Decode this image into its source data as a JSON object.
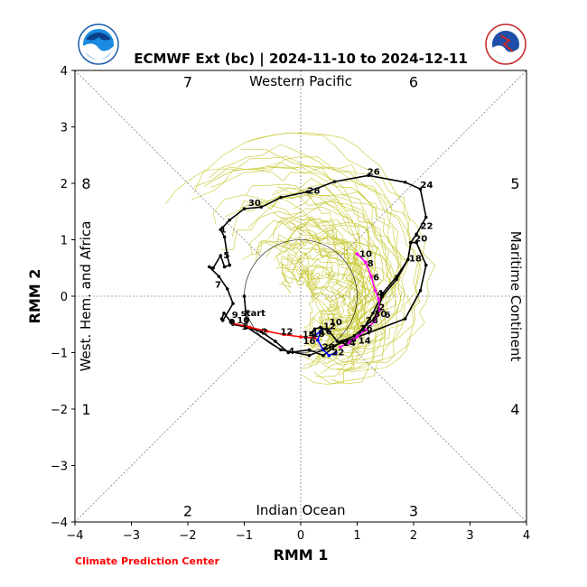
{
  "chart_data": {
    "type": "line",
    "title": "ECMWF Ext (bc) | 2024-11-10 to 2024-12-11",
    "xlabel": "RMM 1",
    "ylabel": "RMM 2",
    "xlim": [
      -4,
      4
    ],
    "ylim": [
      -4,
      4
    ],
    "xticks": [
      "−4",
      "−3",
      "−2",
      "−1",
      "0",
      "1",
      "2",
      "3",
      "4"
    ],
    "yticks": [
      "−4",
      "−3",
      "−2",
      "−1",
      "0",
      "1",
      "2",
      "3",
      "4"
    ],
    "phases": [
      {
        "label": "1",
        "x": -3.8,
        "y": -2
      },
      {
        "label": "2",
        "x": -2,
        "y": -3.8
      },
      {
        "label": "3",
        "x": 2,
        "y": -3.8
      },
      {
        "label": "4",
        "x": 3.8,
        "y": -2
      },
      {
        "label": "5",
        "x": 3.8,
        "y": 2
      },
      {
        "label": "6",
        "x": 2,
        "y": 3.8
      },
      {
        "label": "7",
        "x": -2,
        "y": 3.8
      },
      {
        "label": "8",
        "x": -3.8,
        "y": 2
      }
    ],
    "regions": {
      "top": "Western Pacific",
      "bottom": "Indian Ocean",
      "left": "West. Hem. and Africa",
      "right": "Maritime Continent"
    },
    "credit": "Climate Prediction Center",
    "colors": {
      "observed": "#000000",
      "ens_mean_1": "#ff0000",
      "ens_mean_2": "#0000ff",
      "ens_mean_3": "#ff00ff",
      "members": "#c8c832",
      "credit": "#ff0000"
    },
    "series": [
      {
        "name": "",
        "color": "#000000",
        "x": [
          -1.26,
          -1.35,
          -1.42,
          -1.55,
          -1.62,
          -1.45,
          -1.3,
          -1.2,
          -1.38,
          -1.4,
          -1.36,
          -1.2,
          -0.95,
          -0.35,
          0.15,
          0.58,
          1.2,
          1.85,
          2.12,
          2.22,
          2.05,
          1.95,
          1.9,
          1.7,
          1.45,
          1.3,
          1.12,
          0.95,
          0.72,
          0.4,
          0.15,
          -0.22,
          -0.45,
          -0.7,
          -0.95,
          -1.0
        ],
        "y": [
          0.55,
          0.52,
          0.72,
          0.5,
          0.52,
          0.35,
          0.13,
          -0.13,
          -0.43,
          -0.4,
          -0.3,
          -0.5,
          -0.55,
          -0.95,
          -1.05,
          -0.88,
          -0.65,
          -0.4,
          0.1,
          0.55,
          0.95,
          0.95,
          0.65,
          0.3,
          0.0,
          -0.4,
          -0.55,
          -0.7,
          -0.8,
          -1.05,
          -0.95,
          -1.0,
          -0.8,
          -0.63,
          -0.55,
          0.0
        ]
      },
      {
        "name": "",
        "color": "#000000",
        "x": [
          -1.26,
          -1.3,
          -1.35,
          -1.42,
          -1.26,
          -1.0,
          -0.7,
          -0.35,
          0.12,
          0.6,
          1.2,
          1.85,
          2.12,
          2.22,
          2.05,
          1.95,
          1.9,
          1.7,
          1.45,
          1.28,
          1.1,
          0.95,
          0.8,
          0.65,
          0.5,
          0.35,
          0.25,
          0.18
        ],
        "y": [
          0.55,
          0.7,
          1.05,
          1.18,
          1.35,
          1.55,
          1.58,
          1.75,
          1.85,
          2.03,
          2.14,
          2.02,
          1.9,
          1.4,
          1.1,
          0.95,
          0.65,
          0.35,
          0.05,
          -0.3,
          -0.58,
          -0.78,
          -0.85,
          -0.8,
          -0.62,
          -0.55,
          -0.58,
          -0.65
        ]
      },
      {
        "name": "",
        "color": "#ff0000",
        "x": [
          -1.2,
          -0.9,
          -0.6,
          -0.3,
          0.0,
          0.25
        ],
        "y": [
          -0.48,
          -0.55,
          -0.62,
          -0.68,
          -0.72,
          -0.74
        ]
      },
      {
        "name": "",
        "color": "#0000ff",
        "x": [
          0.25,
          0.35,
          0.3,
          0.4,
          0.5,
          0.62
        ],
        "y": [
          -0.7,
          -0.62,
          -0.78,
          -0.95,
          -1.05,
          -1.0
        ]
      },
      {
        "name": "",
        "color": "#ff00ff",
        "x": [
          1.0,
          1.15,
          1.25,
          1.32,
          1.38,
          1.4,
          1.3,
          1.15,
          1.0,
          0.85,
          0.7
        ],
        "y": [
          0.75,
          0.6,
          0.35,
          0.1,
          -0.05,
          -0.25,
          -0.45,
          -0.6,
          -0.72,
          -0.82,
          -0.9
        ]
      }
    ],
    "day_labels": [
      {
        "text": "30",
        "x": -0.93,
        "y": 1.6
      },
      {
        "text": "28",
        "x": 0.12,
        "y": 1.82
      },
      {
        "text": "26",
        "x": 1.18,
        "y": 2.15
      },
      {
        "text": "24",
        "x": 2.12,
        "y": 1.92
      },
      {
        "text": "22",
        "x": 2.12,
        "y": 1.19
      },
      {
        "text": "20",
        "x": 2.02,
        "y": 0.97
      },
      {
        "text": "18",
        "x": 1.92,
        "y": 0.62
      },
      {
        "text": "1",
        "x": -1.43,
        "y": 1.13
      },
      {
        "text": "5",
        "x": -1.37,
        "y": 0.67
      },
      {
        "text": "7",
        "x": -1.52,
        "y": 0.15
      },
      {
        "text": "9",
        "x": -1.22,
        "y": -0.38
      },
      {
        "text": "start",
        "x": -1.06,
        "y": -0.35
      },
      {
        "text": "10",
        "x": -1.13,
        "y": -0.48
      },
      {
        "text": "1",
        "x": -1.05,
        "y": -0.59
      },
      {
        "text": "2",
        "x": -0.7,
        "y": -0.68
      },
      {
        "text": "12",
        "x": -0.36,
        "y": -0.68
      },
      {
        "text": "14",
        "x": 0.03,
        "y": -0.73
      },
      {
        "text": "16",
        "x": 0.04,
        "y": -0.85
      },
      {
        "text": "4",
        "x": -0.22,
        "y": -1.02
      },
      {
        "text": "16",
        "x": 0.33,
        "y": -0.68
      },
      {
        "text": "18",
        "x": 0.2,
        "y": -0.72
      },
      {
        "text": "12",
        "x": 0.4,
        "y": -0.58
      },
      {
        "text": "10",
        "x": 0.51,
        "y": -0.51
      },
      {
        "text": "20",
        "x": 0.38,
        "y": -0.95
      },
      {
        "text": "22",
        "x": 0.55,
        "y": -1.05
      },
      {
        "text": "24",
        "x": 0.75,
        "y": -0.88
      },
      {
        "text": "14",
        "x": 1.02,
        "y": -0.84
      },
      {
        "text": "26",
        "x": 1.05,
        "y": -0.62
      },
      {
        "text": "28",
        "x": 1.15,
        "y": -0.48
      },
      {
        "text": "30",
        "x": 1.3,
        "y": -0.37
      },
      {
        "text": "6",
        "x": 1.48,
        "y": -0.38
      },
      {
        "text": "2",
        "x": 1.38,
        "y": -0.25
      },
      {
        "text": "4",
        "x": 1.35,
        "y": 0.0
      },
      {
        "text": "6",
        "x": 1.28,
        "y": 0.28
      },
      {
        "text": "8",
        "x": 1.18,
        "y": 0.53
      },
      {
        "text": "10",
        "x": 1.04,
        "y": 0.7
      }
    ]
  }
}
